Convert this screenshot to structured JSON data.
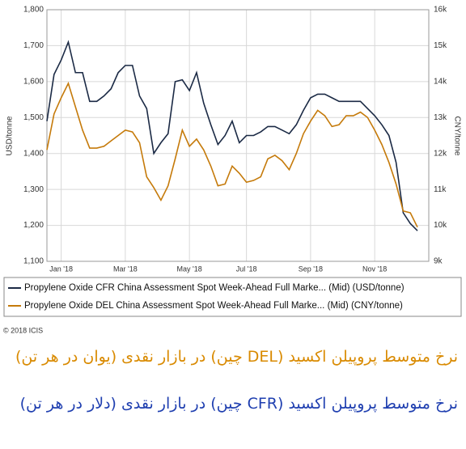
{
  "chart_data": {
    "type": "line",
    "y_label": "USD/tonne",
    "y2_label": "CNY/tonne",
    "categories": [
      null,
      null,
      "Jan '18",
      null,
      null,
      null,
      null,
      null,
      null,
      null,
      null,
      "Mar '18",
      null,
      null,
      null,
      null,
      null,
      null,
      null,
      null,
      "May '18",
      null,
      null,
      null,
      null,
      null,
      null,
      null,
      "Jul '18",
      null,
      null,
      null,
      null,
      null,
      null,
      null,
      null,
      "Sep '18",
      null,
      null,
      null,
      null,
      null,
      null,
      null,
      null,
      "Nov '18",
      null,
      null,
      null,
      null,
      null,
      null
    ],
    "series": [
      {
        "name": "Propylene Oxide CFR China Assessment Spot Week-Ahead Full Marke... (Mid) (USD/tonne)",
        "color": "#1b2a45",
        "values": [
          1490,
          1620,
          1660,
          1710,
          1625,
          1625,
          1545,
          1545,
          1560,
          1580,
          1625,
          1645,
          1645,
          1560,
          1525,
          1400,
          1430,
          1455,
          1600,
          1605,
          1575,
          1625,
          1540,
          1480,
          1425,
          1450,
          1490,
          1430,
          1450,
          1450,
          1460,
          1475,
          1475,
          1465,
          1455,
          1480,
          1520,
          1555,
          1565,
          1565,
          1555,
          1545,
          1545,
          1545,
          1545,
          1525,
          1505,
          1480,
          1450,
          1375,
          1235,
          1205,
          1185
        ]
      },
      {
        "name": "Propylene Oxide DEL China Assessment Spot Week-Ahead Full Marke... (Mid) (CNY/tonne)",
        "color": "#c57a0a",
        "axis": "y2",
        "values": [
          12100,
          13100,
          13550,
          13950,
          13300,
          12650,
          12150,
          12150,
          12200,
          12350,
          12500,
          12650,
          12600,
          12300,
          11350,
          11050,
          10700,
          11100,
          11850,
          12650,
          12200,
          12400,
          12100,
          11650,
          11100,
          11150,
          11650,
          11450,
          11200,
          11250,
          11350,
          11850,
          11950,
          11800,
          11550,
          12000,
          12550,
          12900,
          13200,
          13050,
          12750,
          12800,
          13050,
          13050,
          13150,
          13000,
          12650,
          12250,
          11750,
          11150,
          10400,
          10350,
          9950
        ]
      }
    ],
    "ylim": [
      1100,
      1800
    ],
    "yticks": [
      {
        "value": 1100,
        "label": "1,100"
      },
      {
        "value": 1200,
        "label": "1,200"
      },
      {
        "value": 1300,
        "label": "1,300"
      },
      {
        "value": 1400,
        "label": "1,400"
      },
      {
        "value": 1500,
        "label": "1,500"
      },
      {
        "value": 1600,
        "label": "1,600"
      },
      {
        "value": 1700,
        "label": "1,700"
      },
      {
        "value": 1800,
        "label": "1,800"
      }
    ],
    "y2lim": [
      9000,
      16000
    ],
    "y2ticks": [
      {
        "value": 9000,
        "label": "9k"
      },
      {
        "value": 10000,
        "label": "10k"
      },
      {
        "value": 11000,
        "label": "11k"
      },
      {
        "value": 12000,
        "label": "12k"
      },
      {
        "value": 13000,
        "label": "13k"
      },
      {
        "value": 14000,
        "label": "14k"
      },
      {
        "value": 15000,
        "label": "15k"
      },
      {
        "value": 16000,
        "label": "16k"
      }
    ],
    "grid": true,
    "legend": "bottom",
    "source": "© 2018 ICIS"
  },
  "captions": [
    {
      "text": "نرخ متوسط پروپیلن اکسید (DEL چین) در بازار نقدی (یوان در هر تن)",
      "color": "#d98a00"
    },
    {
      "text": "نرخ متوسط پروپیلن اکسید (CFR چین) در بازار نقدی (دلار در هر تن)",
      "color": "#1f3fb0"
    }
  ]
}
